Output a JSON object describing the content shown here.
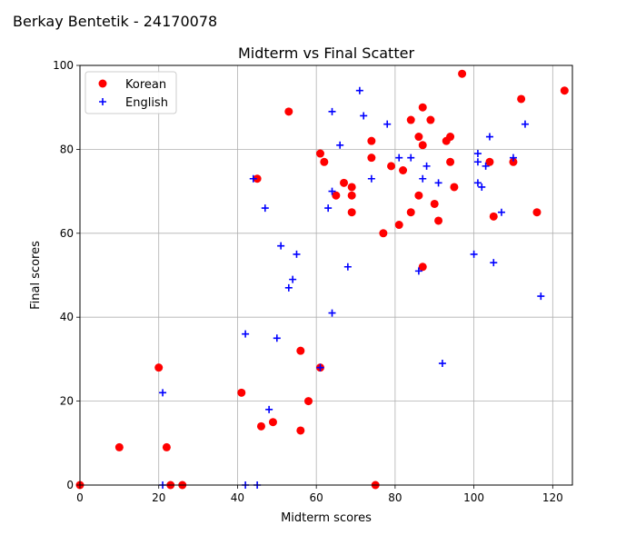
{
  "figure": {
    "suptitle": "Berkay Bentetik - 24170078"
  },
  "chart_data": {
    "type": "scatter",
    "title": "Midterm vs Final Scatter",
    "xlabel": "Midterm scores",
    "ylabel": "Final scores",
    "xlim": [
      0,
      125
    ],
    "ylim": [
      0,
      100
    ],
    "xticks": [
      0,
      20,
      40,
      60,
      80,
      100,
      120
    ],
    "yticks": [
      0,
      20,
      40,
      60,
      80,
      100
    ],
    "grid": true,
    "legend_position": "top-left",
    "series": [
      {
        "name": "Korean",
        "marker": "circle",
        "color": "#ff0000",
        "points": [
          [
            0,
            0
          ],
          [
            10,
            9
          ],
          [
            20,
            28
          ],
          [
            22,
            9
          ],
          [
            23,
            0
          ],
          [
            26,
            0
          ],
          [
            41,
            22
          ],
          [
            45,
            73
          ],
          [
            46,
            14
          ],
          [
            49,
            15
          ],
          [
            53,
            89
          ],
          [
            56,
            32
          ],
          [
            56,
            13
          ],
          [
            58,
            20
          ],
          [
            61,
            28
          ],
          [
            61,
            79
          ],
          [
            62,
            77
          ],
          [
            65,
            69
          ],
          [
            67,
            72
          ],
          [
            69,
            71
          ],
          [
            69,
            69
          ],
          [
            69,
            65
          ],
          [
            74,
            82
          ],
          [
            74,
            78
          ],
          [
            75,
            0
          ],
          [
            77,
            60
          ],
          [
            79,
            76
          ],
          [
            81,
            62
          ],
          [
            82,
            75
          ],
          [
            84,
            87
          ],
          [
            84,
            65
          ],
          [
            86,
            83
          ],
          [
            86,
            69
          ],
          [
            87,
            90
          ],
          [
            87,
            81
          ],
          [
            87,
            52
          ],
          [
            89,
            87
          ],
          [
            90,
            67
          ],
          [
            91,
            63
          ],
          [
            93,
            82
          ],
          [
            94,
            83
          ],
          [
            94,
            77
          ],
          [
            95,
            71
          ],
          [
            97,
            98
          ],
          [
            104,
            77
          ],
          [
            105,
            64
          ],
          [
            110,
            77
          ],
          [
            112,
            92
          ],
          [
            116,
            65
          ],
          [
            123,
            94
          ]
        ]
      },
      {
        "name": "English",
        "marker": "plus",
        "color": "#0000ff",
        "points": [
          [
            21,
            22
          ],
          [
            21,
            0
          ],
          [
            42,
            36
          ],
          [
            42,
            0
          ],
          [
            44,
            73
          ],
          [
            45,
            0
          ],
          [
            47,
            66
          ],
          [
            48,
            18
          ],
          [
            50,
            35
          ],
          [
            51,
            57
          ],
          [
            53,
            47
          ],
          [
            54,
            49
          ],
          [
            55,
            55
          ],
          [
            61,
            28
          ],
          [
            63,
            66
          ],
          [
            64,
            89
          ],
          [
            64,
            70
          ],
          [
            64,
            41
          ],
          [
            66,
            81
          ],
          [
            68,
            52
          ],
          [
            71,
            94
          ],
          [
            72,
            88
          ],
          [
            74,
            73
          ],
          [
            78,
            86
          ],
          [
            81,
            78
          ],
          [
            84,
            78
          ],
          [
            86,
            51
          ],
          [
            87,
            73
          ],
          [
            88,
            76
          ],
          [
            91,
            72
          ],
          [
            92,
            29
          ],
          [
            100,
            55
          ],
          [
            101,
            79
          ],
          [
            101,
            77
          ],
          [
            101,
            72
          ],
          [
            102,
            71
          ],
          [
            103,
            76
          ],
          [
            104,
            83
          ],
          [
            105,
            53
          ],
          [
            107,
            65
          ],
          [
            110,
            78
          ],
          [
            113,
            86
          ],
          [
            117,
            45
          ]
        ]
      }
    ]
  }
}
